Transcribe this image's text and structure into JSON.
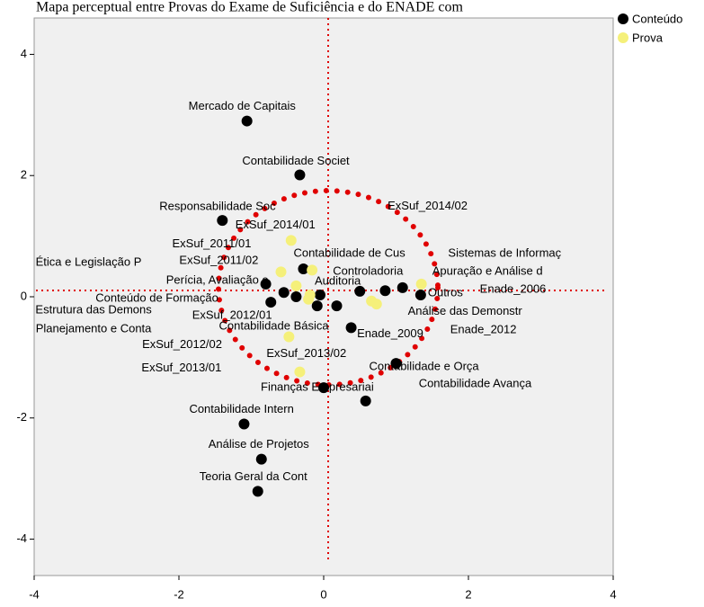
{
  "chart_data": {
    "type": "scatter",
    "title": "Mapa perceptual entre Provas do Exame de Suficiência e do ENADE com",
    "xlim": [
      -4,
      4
    ],
    "ylim": [
      -4.6,
      4.6
    ],
    "xticks": [
      -4,
      -2,
      0,
      2,
      4
    ],
    "yticks": [
      -4,
      -2,
      0,
      2,
      4
    ],
    "series": [
      {
        "name": "Conteúdo",
        "color": "#000000",
        "labels": [
          "Mercado de Capitais",
          "Contabilidade Societ",
          "Responsabilidade Soc",
          "Ética e Legislação P",
          "Perícia, Avaliação e",
          "Conteúdo de Formação",
          "Estrutura das Demons",
          "Planejamento e Conta",
          "Contabilidade Básica",
          "Contabilidade de Cus",
          "Auditoria",
          "Controladoria",
          "Apuração e Análise d",
          "Sistemas de Informaç",
          "Outros",
          "Análise das Demonstr",
          "Contabilidade e Orça",
          "Contabilidade Avança",
          "Finanças Empresariai",
          "Contabilidade Intern",
          "Análise de Projetos",
          "Teoria Geral da Cont"
        ],
        "x": [
          -1.06,
          -0.33,
          -1.4,
          -0.8,
          -0.55,
          -0.73,
          -0.38,
          -0.09,
          0.18,
          -0.28,
          -0.05,
          0.5,
          1.09,
          0.85,
          1.34,
          0.38,
          1.0,
          0.58,
          0,
          -1.1,
          -0.86,
          -0.91
        ],
        "values": [
          2.9,
          2.01,
          1.26,
          0.21,
          0.07,
          -0.09,
          0,
          -0.15,
          -0.15,
          0.46,
          0.03,
          0.09,
          0.15,
          0.1,
          0.03,
          -0.51,
          -1.1,
          -1.72,
          -1.5,
          -2.1,
          -2.68,
          -3.21
        ]
      },
      {
        "name": "Prova",
        "color": "#f5f07a",
        "labels": [
          "ExSuf_2014/01",
          "ExSuf_2011/01",
          "ExSuf_2011/02",
          "ExSuf_2014/02",
          "ExSuf_2012/01",
          "ExSuf_2012/02",
          "ExSuf_2013/02",
          "ExSuf_2013/01",
          "Enade_2006",
          "Enade_2009",
          "Enade_2012"
        ],
        "x": [
          -0.45,
          -0.59,
          -0.38,
          -0.16,
          -0.19,
          -0.21,
          -0.48,
          -0.33,
          1.35,
          0.66,
          0.73
        ],
        "values": [
          0.93,
          0.41,
          0.18,
          0.44,
          0.03,
          -0.04,
          -0.66,
          -1.24,
          0.21,
          -0.07,
          -0.12
        ]
      }
    ]
  }
}
